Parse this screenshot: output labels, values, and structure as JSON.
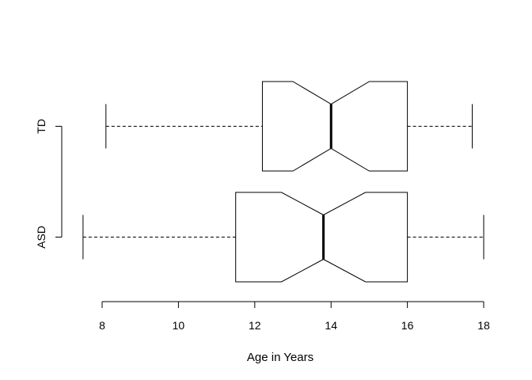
{
  "chart_data": {
    "type": "boxplot",
    "orientation": "horizontal",
    "notched": true,
    "xlabel": "Age in Years",
    "xlim": [
      8,
      18
    ],
    "xticks": [
      8,
      10,
      12,
      14,
      16,
      18
    ],
    "grid": false,
    "categories": [
      "ASD",
      "TD"
    ],
    "series": [
      {
        "name": "ASD",
        "whisker_low": 7.5,
        "q1": 11.5,
        "notch_low": 13.8,
        "median": 13.8,
        "notch_high": 13.8,
        "q3": 16.0,
        "whisker_high": 18.0,
        "notch_lower_bound": 12.7,
        "notch_upper_bound": 14.9
      },
      {
        "name": "TD",
        "whisker_low": 8.1,
        "q1": 12.2,
        "median": 14.0,
        "q3": 16.0,
        "whisker_high": 17.7,
        "notch_lower_bound": 13.0,
        "notch_upper_bound": 15.0
      }
    ]
  }
}
